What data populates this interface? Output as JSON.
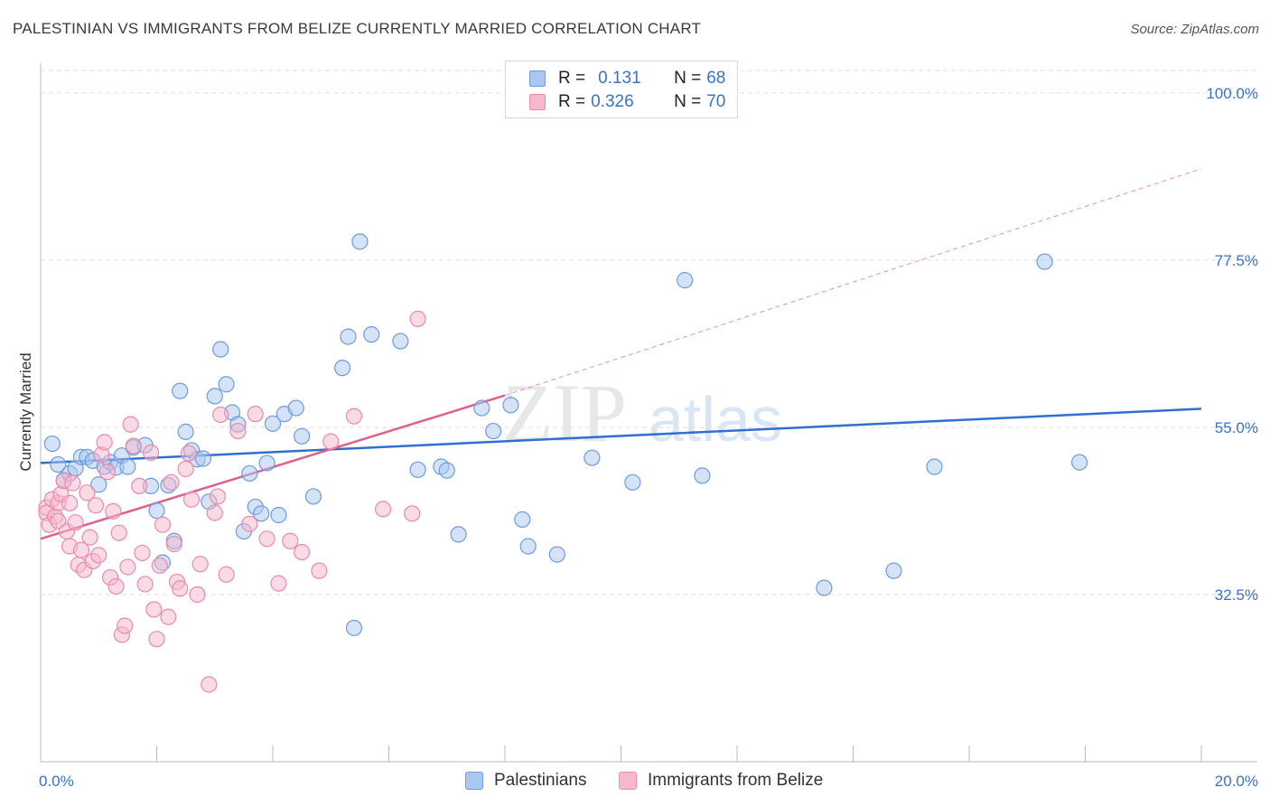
{
  "title": "PALESTINIAN VS IMMIGRANTS FROM BELIZE CURRENTLY MARRIED CORRELATION CHART",
  "source": "Source: ZipAtlas.com",
  "watermark_zip": "ZIP",
  "watermark_atlas": "atlas",
  "legend": {
    "row1": {
      "r_key": "R =",
      "r_val": "0.131",
      "n_key": "N =",
      "n_val": "68"
    },
    "row2": {
      "r_key": "R =",
      "r_val": "0.326",
      "n_key": "N =",
      "n_val": "70"
    }
  },
  "bottom_legend": {
    "s1": "Palestinians",
    "s2": "Immigrants from Belize"
  },
  "colors": {
    "blue_fill": "#a9c7ef",
    "blue_stroke": "#6d9be0",
    "blue_line": "#2f6fcf",
    "pink_fill": "#f6b8cc",
    "pink_stroke": "#e98aa8",
    "pink_line": "#e0608a",
    "grid": "#dedede",
    "tick_text": "#3b73c4"
  },
  "chart_data": {
    "type": "scatter",
    "title": "PALESTINIAN VS IMMIGRANTS FROM BELIZE CURRENTLY MARRIED CORRELATION CHART",
    "xlabel": "",
    "ylabel": "Currently Married",
    "xlim": [
      0,
      20
    ],
    "ylim": [
      10,
      104
    ],
    "x_tick_labels": [
      "0.0%",
      "20.0%"
    ],
    "y_ticks": [
      32.5,
      55.0,
      77.5,
      100.0
    ],
    "y_tick_labels": [
      "32.5%",
      "55.0%",
      "77.5%",
      "100.0%"
    ],
    "grid": true,
    "legend_position": "top-center",
    "series": [
      {
        "name": "Palestinians",
        "R": 0.131,
        "N": 68,
        "trend": {
          "x": [
            0,
            20
          ],
          "y": [
            50.2,
            57.5
          ],
          "dashed_extension": false
        },
        "points": [
          [
            0.2,
            52.8
          ],
          [
            0.3,
            50.0
          ],
          [
            0.4,
            47.9
          ],
          [
            0.5,
            48.8
          ],
          [
            0.6,
            49.5
          ],
          [
            0.7,
            51.0
          ],
          [
            0.8,
            51.0
          ],
          [
            0.9,
            50.5
          ],
          [
            1.0,
            47.3
          ],
          [
            1.1,
            49.7
          ],
          [
            1.2,
            50.3
          ],
          [
            1.3,
            49.6
          ],
          [
            1.4,
            51.2
          ],
          [
            1.5,
            49.7
          ],
          [
            1.6,
            52.3
          ],
          [
            1.8,
            52.6
          ],
          [
            1.9,
            47.1
          ],
          [
            2.0,
            43.8
          ],
          [
            2.1,
            36.8
          ],
          [
            2.2,
            47.2
          ],
          [
            2.3,
            39.7
          ],
          [
            2.4,
            59.9
          ],
          [
            2.5,
            54.4
          ],
          [
            2.6,
            51.9
          ],
          [
            2.7,
            50.7
          ],
          [
            2.8,
            50.8
          ],
          [
            2.9,
            45.0
          ],
          [
            3.0,
            59.2
          ],
          [
            3.1,
            65.5
          ],
          [
            3.2,
            60.8
          ],
          [
            3.3,
            57.0
          ],
          [
            3.4,
            55.4
          ],
          [
            3.5,
            41.0
          ],
          [
            3.6,
            48.8
          ],
          [
            3.7,
            44.3
          ],
          [
            3.8,
            43.4
          ],
          [
            3.9,
            50.2
          ],
          [
            4.0,
            55.5
          ],
          [
            4.1,
            43.2
          ],
          [
            4.2,
            56.8
          ],
          [
            4.4,
            57.6
          ],
          [
            4.5,
            53.8
          ],
          [
            4.7,
            45.7
          ],
          [
            5.2,
            63.0
          ],
          [
            5.3,
            67.2
          ],
          [
            5.5,
            80.0
          ],
          [
            5.7,
            67.5
          ],
          [
            6.2,
            66.6
          ],
          [
            6.5,
            49.3
          ],
          [
            6.9,
            49.7
          ],
          [
            7.0,
            49.2
          ],
          [
            7.2,
            40.6
          ],
          [
            7.6,
            57.6
          ],
          [
            7.8,
            54.5
          ],
          [
            8.1,
            58.0
          ],
          [
            8.3,
            42.6
          ],
          [
            8.4,
            39.0
          ],
          [
            8.9,
            37.9
          ],
          [
            9.5,
            50.9
          ],
          [
            10.2,
            47.6
          ],
          [
            11.1,
            74.8
          ],
          [
            5.4,
            28.0
          ],
          [
            11.4,
            48.5
          ],
          [
            13.5,
            33.4
          ],
          [
            14.7,
            35.7
          ],
          [
            15.4,
            49.7
          ],
          [
            17.3,
            77.3
          ],
          [
            17.9,
            50.3
          ]
        ]
      },
      {
        "name": "Immigrants from Belize",
        "R": 0.326,
        "N": 70,
        "trend": {
          "x": [
            0,
            8
          ],
          "y": [
            40.0,
            59.3
          ],
          "dashed_extension": {
            "x": [
              8,
              20
            ],
            "y": [
              59.3,
              89.8
            ]
          }
        },
        "points": [
          [
            0.1,
            44.2
          ],
          [
            0.1,
            43.5
          ],
          [
            0.15,
            41.9
          ],
          [
            0.2,
            45.3
          ],
          [
            0.25,
            43.0
          ],
          [
            0.3,
            44.8
          ],
          [
            0.3,
            42.4
          ],
          [
            0.35,
            46.0
          ],
          [
            0.4,
            47.8
          ],
          [
            0.45,
            41.0
          ],
          [
            0.5,
            44.8
          ],
          [
            0.5,
            39.0
          ],
          [
            0.55,
            47.5
          ],
          [
            0.6,
            42.2
          ],
          [
            0.65,
            36.5
          ],
          [
            0.7,
            38.5
          ],
          [
            0.75,
            35.8
          ],
          [
            0.8,
            46.2
          ],
          [
            0.85,
            40.2
          ],
          [
            0.9,
            37.0
          ],
          [
            0.95,
            44.5
          ],
          [
            1.0,
            37.8
          ],
          [
            1.05,
            51.3
          ],
          [
            1.1,
            53.0
          ],
          [
            1.15,
            49.0
          ],
          [
            1.2,
            34.8
          ],
          [
            1.25,
            43.7
          ],
          [
            1.3,
            33.6
          ],
          [
            1.35,
            40.8
          ],
          [
            1.4,
            27.1
          ],
          [
            1.45,
            28.3
          ],
          [
            1.5,
            36.2
          ],
          [
            1.55,
            55.4
          ],
          [
            1.6,
            52.5
          ],
          [
            1.7,
            47.1
          ],
          [
            1.75,
            38.1
          ],
          [
            1.8,
            33.9
          ],
          [
            1.9,
            51.6
          ],
          [
            1.95,
            30.5
          ],
          [
            2.0,
            26.5
          ],
          [
            2.05,
            36.4
          ],
          [
            2.1,
            41.9
          ],
          [
            2.2,
            29.5
          ],
          [
            2.25,
            47.6
          ],
          [
            2.3,
            39.3
          ],
          [
            2.35,
            34.2
          ],
          [
            2.4,
            33.3
          ],
          [
            2.5,
            49.4
          ],
          [
            2.55,
            51.5
          ],
          [
            2.6,
            45.3
          ],
          [
            2.7,
            32.5
          ],
          [
            2.75,
            36.6
          ],
          [
            2.9,
            20.4
          ],
          [
            3.0,
            43.5
          ],
          [
            3.05,
            45.7
          ],
          [
            3.1,
            56.7
          ],
          [
            3.2,
            35.2
          ],
          [
            3.4,
            54.5
          ],
          [
            3.6,
            42.0
          ],
          [
            3.7,
            56.8
          ],
          [
            3.9,
            40.0
          ],
          [
            4.1,
            34.0
          ],
          [
            4.3,
            39.7
          ],
          [
            4.5,
            38.2
          ],
          [
            4.8,
            35.7
          ],
          [
            5.0,
            53.1
          ],
          [
            5.4,
            56.5
          ],
          [
            5.9,
            44.0
          ],
          [
            6.4,
            43.4
          ],
          [
            6.5,
            69.6
          ]
        ]
      }
    ]
  }
}
